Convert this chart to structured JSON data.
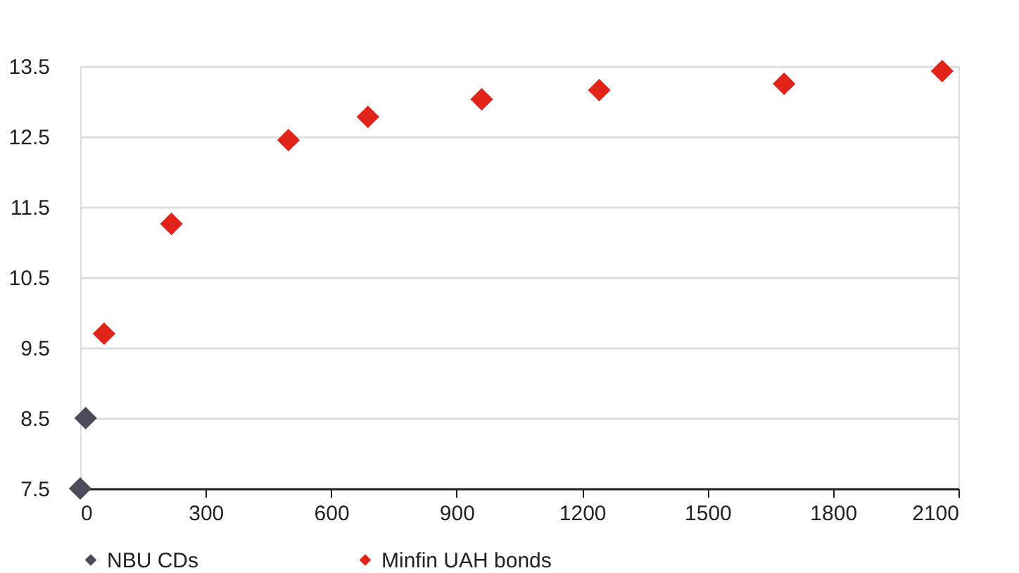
{
  "chart_data": {
    "type": "scatter",
    "series": [
      {
        "name": "NBU CDs",
        "color": "#4b4b5a",
        "x": [
          0,
          13
        ],
        "values": [
          7.5,
          8.5
        ]
      },
      {
        "name": "Minfin UAH bonds",
        "color": "#e2231a",
        "x": [
          57,
          218,
          498,
          688,
          960,
          1241,
          1683,
          2061
        ],
        "values": [
          9.7,
          11.26,
          12.45,
          12.78,
          13.03,
          13.16,
          13.25,
          13.43
        ]
      }
    ],
    "xlim": [
      0,
      2100
    ],
    "xticks": [
      0,
      300,
      600,
      900,
      1200,
      1500,
      1800,
      2100
    ],
    "ylim": [
      7.5,
      13.5
    ],
    "yticks": [
      7.5,
      8.5,
      9.5,
      10.5,
      11.5,
      12.5,
      13.5
    ],
    "grid": "y",
    "legend": "bottom",
    "marker": "diamond"
  }
}
